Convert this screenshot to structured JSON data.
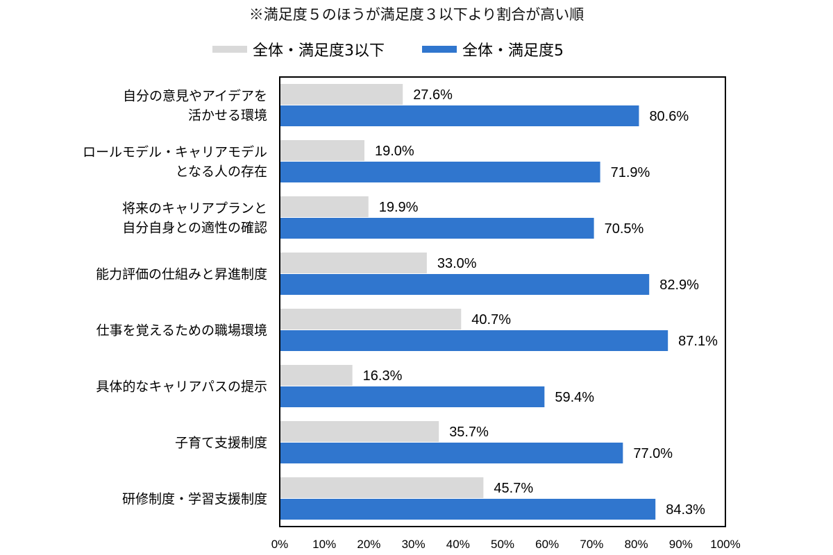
{
  "chart_data": {
    "type": "bar",
    "orientation": "horizontal",
    "note": "※満足度５のほうが満足度３以下より割合が高い順",
    "legend_position": "top",
    "categories": [
      [
        "自分の意見やアイデアを",
        "活かせる環境"
      ],
      [
        "ロールモデル・キャリアモデル",
        "となる人の存在"
      ],
      [
        "将来のキャリアプランと",
        "自分自身との適性の確認"
      ],
      [
        "能力評価の仕組みと昇進制度"
      ],
      [
        "仕事を覚えるための職場環境"
      ],
      [
        "具体的なキャリアパスの提示"
      ],
      [
        "子育て支援制度"
      ],
      [
        "研修制度・学習支援制度"
      ]
    ],
    "series": [
      {
        "name": "全体・満足度3以下",
        "color": "#d9d9d9",
        "values": [
          27.6,
          19.0,
          19.9,
          33.0,
          40.7,
          16.3,
          35.7,
          45.7
        ],
        "value_labels": [
          "27.6%",
          "19.0%",
          "19.9%",
          "33.0%",
          "40.7%",
          "16.3%",
          "35.7%",
          "45.7%"
        ]
      },
      {
        "name": "全体・満足度5",
        "color": "#3076ce",
        "values": [
          80.6,
          71.9,
          70.5,
          82.9,
          87.1,
          59.4,
          77.0,
          84.3
        ],
        "value_labels": [
          "80.6%",
          "71.9%",
          "70.5%",
          "82.9%",
          "87.1%",
          "59.4%",
          "77.0%",
          "84.3%"
        ]
      }
    ],
    "xlim": [
      0,
      100
    ],
    "xticks": [
      0,
      10,
      20,
      30,
      40,
      50,
      60,
      70,
      80,
      90,
      100
    ],
    "xtick_labels": [
      "0%",
      "10%",
      "20%",
      "30%",
      "40%",
      "50%",
      "60%",
      "70%",
      "80%",
      "90%",
      "100%"
    ],
    "grid": false,
    "plot_border": true
  }
}
